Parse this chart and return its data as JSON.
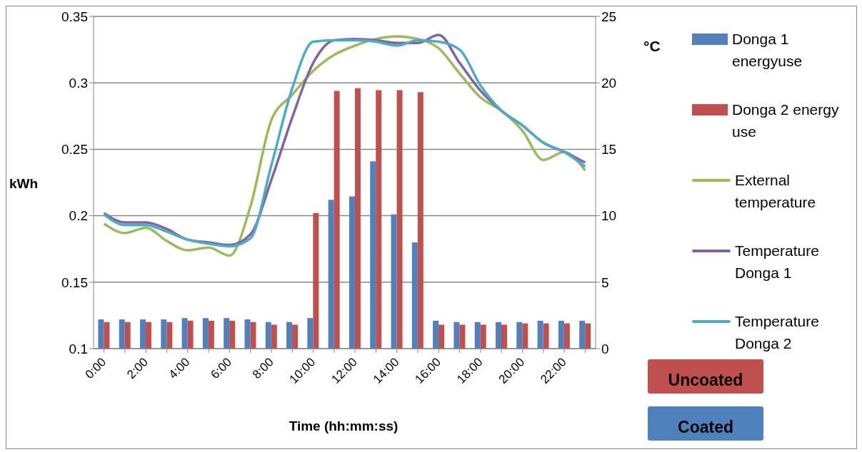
{
  "chart_data": {
    "type": "bar",
    "xlabel": "Time (hh:mm:ss)",
    "ylabel": "kWh",
    "y2label": "°C",
    "categories": [
      "0:00",
      null,
      "2:00",
      null,
      "4:00",
      null,
      "6:00",
      null,
      "8:00",
      null,
      "10:00",
      null,
      "12:00",
      null,
      "14:00",
      null,
      "16:00",
      null,
      "18:00",
      null,
      "20:00",
      null,
      "22:00",
      null
    ],
    "series": [
      {
        "name": "Donga 1 energyuse",
        "color": "#4f81bd",
        "values": [
          0.122,
          0.122,
          0.122,
          0.122,
          0.123,
          0.123,
          0.123,
          0.122,
          0.12,
          0.12,
          0.123,
          0.212,
          0.2145,
          0.241,
          0.201,
          0.18,
          0.121,
          0.12,
          0.12,
          0.12,
          0.12,
          0.121,
          0.121,
          0.121
        ]
      },
      {
        "name": "Donga 2 energy use",
        "color": "#c0504d",
        "values": [
          0.12,
          0.12,
          0.12,
          0.12,
          0.121,
          0.121,
          0.121,
          0.12,
          0.118,
          0.118,
          0.202,
          0.294,
          0.296,
          0.2945,
          0.2945,
          0.293,
          0.118,
          0.118,
          0.118,
          0.118,
          0.119,
          0.119,
          0.119,
          0.119
        ]
      },
      {
        "name": "External temperature",
        "type": "line",
        "axis": "y2",
        "color": "#9bbb59",
        "values": [
          9.4,
          8.7,
          9.1,
          8.1,
          7.4,
          7.6,
          7.0,
          10.7,
          17.2,
          19.1,
          20.9,
          22.1,
          22.8,
          23.3,
          23.5,
          23.3,
          22.6,
          20.7,
          18.9,
          17.9,
          16.4,
          14.2,
          14.8,
          13.4
        ]
      },
      {
        "name": "Temperature Donga 1",
        "type": "line",
        "axis": "y2",
        "color": "#8064a2",
        "values": [
          10.2,
          9.5,
          9.5,
          9.0,
          8.2,
          8.0,
          7.8,
          8.6,
          12.7,
          17.4,
          21.5,
          23.2,
          23.3,
          23.2,
          23.0,
          23.0,
          23.6,
          21.5,
          19.4,
          17.9,
          16.8,
          15.5,
          14.8,
          14.0
        ]
      },
      {
        "name": "Temperature Donga 2",
        "type": "line",
        "axis": "y2",
        "color": "#4bacc6",
        "values": [
          10.1,
          9.3,
          9.3,
          8.8,
          8.2,
          7.9,
          7.7,
          8.3,
          13.8,
          19.6,
          23.1,
          23.2,
          23.2,
          23.1,
          22.8,
          23.2,
          23.1,
          22.5,
          19.8,
          17.9,
          16.8,
          15.5,
          14.8,
          13.7
        ]
      }
    ],
    "ylim": [
      0.1,
      0.35
    ],
    "yticks": [
      0.1,
      0.15,
      0.2,
      0.25,
      0.3,
      0.35
    ],
    "y2lim": [
      0,
      25
    ],
    "y2ticks": [
      0,
      5,
      10,
      15,
      20,
      25
    ],
    "grid": "y",
    "legend": "right",
    "marker": "none",
    "line_style": "solid",
    "annotations": [
      "Uncoated",
      "Coated"
    ]
  }
}
